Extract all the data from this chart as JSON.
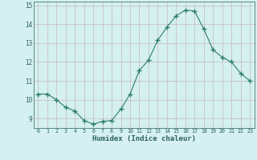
{
  "x": [
    0,
    1,
    2,
    3,
    4,
    5,
    6,
    7,
    8,
    9,
    10,
    11,
    12,
    13,
    14,
    15,
    16,
    17,
    18,
    19,
    20,
    21,
    22,
    23
  ],
  "y": [
    10.3,
    10.3,
    10.0,
    9.6,
    9.4,
    8.9,
    8.7,
    8.85,
    8.9,
    9.5,
    10.3,
    11.55,
    12.1,
    13.15,
    13.85,
    14.45,
    14.75,
    14.7,
    13.75,
    12.65,
    12.25,
    12.0,
    11.4,
    11.0
  ],
  "xlim": [
    -0.5,
    23.5
  ],
  "ylim": [
    8.5,
    15.2
  ],
  "yticks": [
    9,
    10,
    11,
    12,
    13,
    14,
    15
  ],
  "xticks": [
    0,
    1,
    2,
    3,
    4,
    5,
    6,
    7,
    8,
    9,
    10,
    11,
    12,
    13,
    14,
    15,
    16,
    17,
    18,
    19,
    20,
    21,
    22,
    23
  ],
  "xlabel": "Humidex (Indice chaleur)",
  "line_color": "#2e7d6e",
  "marker": "+",
  "marker_size": 4.0,
  "bg_color": "#d4f0f0",
  "grid_color_major": "#c8b8b8",
  "grid_color_minor": "#ddd0d0",
  "tick_color": "#2e6060",
  "label_color": "#2e6060"
}
